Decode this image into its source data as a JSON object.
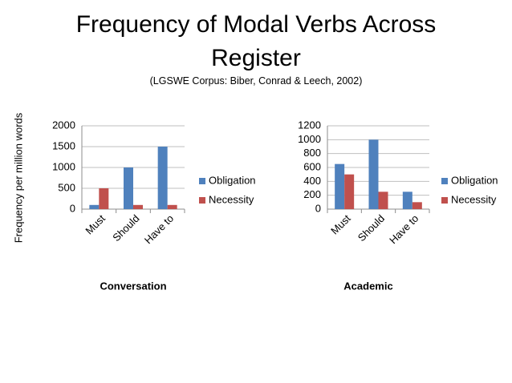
{
  "slide": {
    "title": "Frequency of Modal Verbs Across Register",
    "subtitle": "(LGSWE Corpus: Biber,  Conrad & Leech, 2002)",
    "y_axis_label": "Frequency per million words"
  },
  "chart_data": [
    {
      "type": "bar",
      "xlabel": "Conversation",
      "categories": [
        "Must",
        "Should",
        "Have to"
      ],
      "series": [
        {
          "name": "Obligation",
          "color": "#4f81bd",
          "values": [
            100,
            1000,
            1500
          ]
        },
        {
          "name": "Necessity",
          "color": "#c0504d",
          "values": [
            500,
            100,
            100
          ]
        }
      ],
      "ylim": [
        0,
        2000
      ],
      "yticks": [
        0,
        500,
        1000,
        1500,
        2000
      ],
      "grid": true,
      "legend": "right"
    },
    {
      "type": "bar",
      "xlabel": "Academic",
      "categories": [
        "Must",
        "Should",
        "Have to"
      ],
      "series": [
        {
          "name": "Obligation",
          "color": "#4f81bd",
          "values": [
            650,
            1000,
            250
          ]
        },
        {
          "name": "Necessity",
          "color": "#c0504d",
          "values": [
            500,
            250,
            100
          ]
        }
      ],
      "ylim": [
        0,
        1200
      ],
      "yticks": [
        0,
        200,
        400,
        600,
        800,
        1000,
        1200
      ],
      "grid": true,
      "legend": "right"
    }
  ]
}
